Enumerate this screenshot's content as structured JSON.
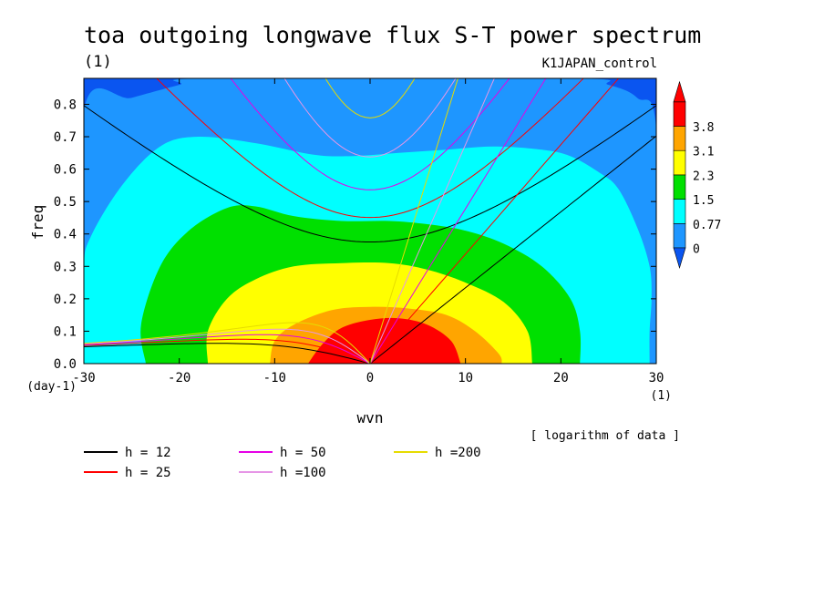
{
  "title": "toa outgoing longwave flux S-T power spectrum",
  "subtitle": "(1)",
  "experiment": "K1JAPAN_control",
  "note": "[ logarithm of data ]",
  "colors": {
    "dark_blue": "#0a55f0",
    "mid_blue": "#1e96ff",
    "cyan": "#00ffff",
    "green": "#00e000",
    "yellow": "#ffff00",
    "orange": "#ffa500",
    "red": "#ff0000"
  },
  "chart_data": {
    "type": "heatmap",
    "title": "toa outgoing longwave flux S-T power spectrum",
    "xlabel": "wvn",
    "ylabel": "freq",
    "x_unit": "(1)",
    "y_unit": "(day-1)",
    "xlim": [
      -30,
      30
    ],
    "ylim": [
      0,
      0.88
    ],
    "x_ticks": [
      -30,
      -20,
      -10,
      0,
      10,
      20,
      30
    ],
    "x_tick_labels": [
      "-30",
      "-20",
      "-10",
      "0",
      "10",
      "20",
      "30"
    ],
    "y_ticks": [
      0.0,
      0.1,
      0.2,
      0.3,
      0.4,
      0.5,
      0.6,
      0.7,
      0.8
    ],
    "y_tick_labels": [
      "0.0",
      "0.1",
      "0.2",
      "0.3",
      "0.4",
      "0.5",
      "0.6",
      "0.7",
      "0.8"
    ],
    "colorbar": {
      "labels": [
        "3.8",
        "3.1",
        "2.3",
        "1.5",
        "0.77",
        "0"
      ],
      "colors_bottom_to_top": [
        "#1e96ff",
        "#00ffff",
        "#00e000",
        "#ffff00",
        "#ffa500",
        "#ff0000"
      ],
      "under_color": "#0a55f0",
      "over_color": "#ff0000"
    },
    "contour_levels": [
      {
        "level": "3.8",
        "color": "#ff0000",
        "polygon": [
          [
            -6.5,
            0
          ],
          [
            -5,
            0.06
          ],
          [
            -3,
            0.11
          ],
          [
            0,
            0.135
          ],
          [
            3,
            0.14
          ],
          [
            6,
            0.12
          ],
          [
            8.5,
            0.07
          ],
          [
            9.5,
            0
          ]
        ]
      },
      {
        "level": "3.1",
        "color": "#ffa500",
        "polygon": [
          [
            -10.5,
            0
          ],
          [
            -10,
            0.07
          ],
          [
            -8,
            0.12
          ],
          [
            -4,
            0.165
          ],
          [
            0,
            0.175
          ],
          [
            4,
            0.17
          ],
          [
            8,
            0.15
          ],
          [
            11,
            0.1
          ],
          [
            13.5,
            0.03
          ],
          [
            13.8,
            0
          ]
        ]
      },
      {
        "level": "2.3",
        "color": "#ffff00",
        "polygon": [
          [
            -17,
            0
          ],
          [
            -17,
            0.1
          ],
          [
            -15,
            0.2
          ],
          [
            -12,
            0.26
          ],
          [
            -8,
            0.3
          ],
          [
            -3,
            0.31
          ],
          [
            2,
            0.31
          ],
          [
            6,
            0.29
          ],
          [
            10,
            0.25
          ],
          [
            14,
            0.19
          ],
          [
            16.5,
            0.1
          ],
          [
            17,
            0
          ]
        ]
      },
      {
        "level": "1.5",
        "color": "#00e000",
        "polygon": [
          [
            -23.5,
            0
          ],
          [
            -24,
            0.12
          ],
          [
            -22,
            0.3
          ],
          [
            -19,
            0.41
          ],
          [
            -15,
            0.48
          ],
          [
            -12,
            0.485
          ],
          [
            -8,
            0.455
          ],
          [
            -3,
            0.44
          ],
          [
            2,
            0.44
          ],
          [
            6,
            0.43
          ],
          [
            10,
            0.41
          ],
          [
            14,
            0.37
          ],
          [
            18,
            0.3
          ],
          [
            21,
            0.2
          ],
          [
            22,
            0.1
          ],
          [
            22,
            0
          ]
        ]
      },
      {
        "level": "0.77",
        "color": "#00ffff",
        "polygon": [
          [
            -30,
            0
          ],
          [
            -30,
            0.29
          ],
          [
            -29.3,
            0.39
          ],
          [
            -26,
            0.55
          ],
          [
            -22,
            0.67
          ],
          [
            -18,
            0.7
          ],
          [
            -12,
            0.68
          ],
          [
            -6,
            0.645
          ],
          [
            -2,
            0.64
          ],
          [
            3,
            0.65
          ],
          [
            8,
            0.66
          ],
          [
            13,
            0.67
          ],
          [
            18,
            0.66
          ],
          [
            21,
            0.64
          ],
          [
            24,
            0.59
          ],
          [
            26,
            0.54
          ],
          [
            28,
            0.42
          ],
          [
            29.3,
            0.3
          ],
          [
            29.5,
            0.2
          ],
          [
            29.3,
            0.1
          ],
          [
            29.3,
            0
          ]
        ]
      },
      {
        "level": "0",
        "color": "#1e96ff",
        "polygon": [
          [
            -30,
            0
          ],
          [
            -30,
            0.78
          ],
          [
            -25,
            0.82
          ],
          [
            -20,
            0.86
          ],
          [
            -17,
            0.88
          ],
          [
            21,
            0.88
          ],
          [
            25,
            0.86
          ],
          [
            28,
            0.82
          ],
          [
            30,
            0.72
          ],
          [
            30,
            0
          ]
        ]
      }
    ],
    "dispersion_curves": {
      "equivalent_depths_m": [
        12,
        25,
        50,
        100,
        200
      ],
      "legend": [
        {
          "label": "h = 12",
          "color": "#000000"
        },
        {
          "label": "h = 25",
          "color": "#ff0000"
        },
        {
          "label": "h = 50",
          "color": "#e600e6"
        },
        {
          "label": "h =100",
          "color": "#e696e6"
        },
        {
          "label": "h =200",
          "color": "#e6dc00"
        }
      ]
    }
  }
}
